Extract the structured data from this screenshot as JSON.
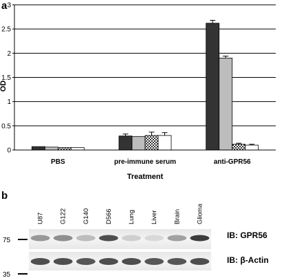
{
  "panel_a_label": "a",
  "panel_b_label": "b",
  "chart_data": {
    "type": "bar",
    "title": "",
    "xlabel": "Treatment",
    "ylabel": "OD",
    "ylim": [
      0,
      3
    ],
    "yticks": [
      "0",
      "0.5",
      "1",
      "1.5",
      "2",
      "2.5",
      "3"
    ],
    "grid": true,
    "legend": "none",
    "categories": [
      "PBS",
      "pre-immune serum",
      "anti-GPR56"
    ],
    "series": [
      {
        "fill": "#333333",
        "pattern": "solid",
        "values": [
          0.07,
          0.29,
          2.62
        ],
        "errors": [
          0.0,
          0.04,
          0.06
        ]
      },
      {
        "fill": "#bdbdbd",
        "pattern": "solid",
        "values": [
          0.06,
          0.28,
          1.9
        ],
        "errors": [
          0.0,
          0.0,
          0.04
        ]
      },
      {
        "fill": "#ffffff",
        "pattern": "checker",
        "values": [
          0.05,
          0.3,
          0.12
        ],
        "errors": [
          0.0,
          0.07,
          0.02
        ]
      },
      {
        "fill": "#ffffff",
        "pattern": "solid",
        "values": [
          0.05,
          0.3,
          0.1
        ],
        "errors": [
          0.0,
          0.06,
          0.02
        ]
      }
    ]
  },
  "blot": {
    "lanes": [
      "U87",
      "G122",
      "G140",
      "D566",
      "Lung",
      "Liver",
      "Brain",
      "Glioma"
    ],
    "rows": [
      {
        "marker": "75",
        "label": "IB:  GPR56",
        "intensities": [
          0.45,
          0.5,
          0.25,
          0.85,
          0.15,
          0.1,
          0.4,
          0.95
        ]
      },
      {
        "marker": "35",
        "label": "IB:  β-Actin",
        "intensities": [
          0.85,
          0.85,
          0.8,
          0.85,
          0.85,
          0.8,
          0.8,
          0.85
        ]
      }
    ]
  }
}
